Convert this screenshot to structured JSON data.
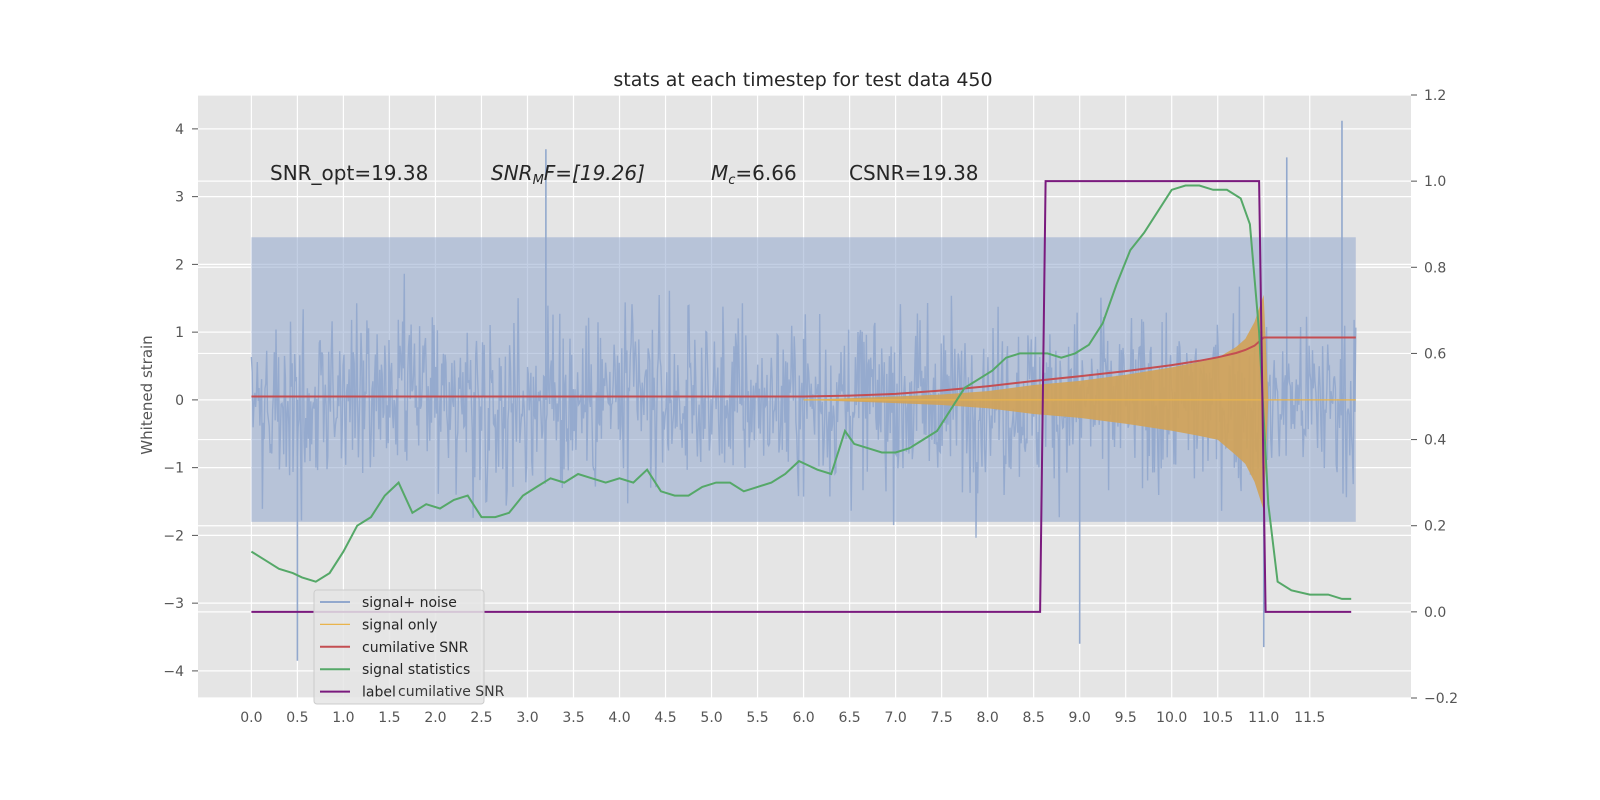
{
  "chart_data": {
    "type": "line",
    "title": "stats at each timestep for test data 450",
    "ylabel": "Whitened strain",
    "xlim": [
      -0.58,
      12.6
    ],
    "ylim": [
      -4.4,
      4.5
    ],
    "y2lim": [
      -0.2,
      1.2
    ],
    "xticks": [
      0.0,
      0.5,
      1.0,
      1.5,
      2.0,
      2.5,
      3.0,
      3.5,
      4.0,
      4.5,
      5.0,
      5.5,
      6.0,
      6.5,
      7.0,
      7.5,
      8.0,
      8.5,
      9.0,
      9.5,
      10.0,
      10.5,
      11.0,
      11.5
    ],
    "xtick_labels": [
      "0.0",
      "0.5",
      "1.0",
      "1.5",
      "2.0",
      "2.5",
      "3.0",
      "3.5",
      "4.0",
      "4.5",
      "5.0",
      "5.5",
      "6.0",
      "6.5",
      "7.0",
      "7.5",
      "8.0",
      "8.5",
      "9.0",
      "9.5",
      "10.0",
      "10.5",
      "11.0",
      "11.5"
    ],
    "yticks": [
      -4,
      -3,
      -2,
      -1,
      0,
      1,
      2,
      3,
      4
    ],
    "ytick_labels": [
      "−4",
      "−3",
      "−2",
      "−1",
      "0",
      "1",
      "2",
      "3",
      "4"
    ],
    "y2ticks": [
      -0.2,
      0.0,
      0.2,
      0.4,
      0.6,
      0.8,
      1.0,
      1.2
    ],
    "y2tick_labels": [
      "−0.2",
      "0.0",
      "0.2",
      "0.4",
      "0.6",
      "0.8",
      "1.0",
      "1.2"
    ],
    "grid": true,
    "legend_position": "lower-left",
    "annotations": [
      "SNR_opt=19.38",
      "SNR_MF=[19.26]",
      "M_c=6.66",
      "CSNR=19.38"
    ],
    "annotation_parts": {
      "snr_opt": "SNR_opt=19.38",
      "snrmf_main": "SNR",
      "snrmf_sub": "M",
      "snrmf_rest": "F=[19.26]",
      "mc_main": "M",
      "mc_sub": "c",
      "mc_rest": "=6.66",
      "csnr": "CSNR=19.38"
    },
    "series": [
      {
        "name": "signal+ noise",
        "axis": "left",
        "color": "#92a8cd",
        "style": "noise",
        "x_range": [
          0.0,
          12.0
        ],
        "typical_range": [
          -1.8,
          2.4
        ],
        "extremes": [
          [
            0.5,
            -3.85
          ],
          [
            3.2,
            3.7
          ],
          [
            6.0,
            0.9
          ],
          [
            9.0,
            -3.6
          ],
          [
            11.0,
            -3.65
          ],
          [
            11.25,
            3.58
          ],
          [
            11.85,
            4.12
          ]
        ]
      },
      {
        "name": "signal only",
        "axis": "left",
        "color": "#e9b44c",
        "style": "chirp",
        "x": [
          6.0,
          7.0,
          7.5,
          8.0,
          8.5,
          9.0,
          9.5,
          10.0,
          10.3,
          10.5,
          10.7,
          10.8,
          10.9,
          10.95,
          11.0,
          11.05,
          12.0
        ],
        "envelope": [
          0.0,
          0.05,
          0.08,
          0.13,
          0.22,
          0.28,
          0.37,
          0.48,
          0.56,
          0.62,
          0.78,
          0.9,
          1.15,
          1.35,
          1.55,
          0.0,
          0.0
        ]
      },
      {
        "name": "cumilative SNR",
        "axis": "right",
        "color": "#c44e52",
        "x": [
          0.0,
          6.0,
          6.5,
          7.0,
          7.5,
          8.0,
          8.5,
          9.0,
          9.5,
          10.0,
          10.3,
          10.5,
          10.7,
          10.8,
          10.9,
          11.0,
          12.0
        ],
        "y": [
          0.5,
          0.5,
          0.502,
          0.506,
          0.514,
          0.524,
          0.536,
          0.547,
          0.559,
          0.573,
          0.583,
          0.591,
          0.601,
          0.608,
          0.618,
          0.637,
          0.637
        ]
      },
      {
        "name": "signal statistics",
        "axis": "right",
        "color": "#55a868",
        "x": [
          0.0,
          0.15,
          0.3,
          0.45,
          0.55,
          0.7,
          0.85,
          1.0,
          1.15,
          1.3,
          1.45,
          1.6,
          1.75,
          1.9,
          2.05,
          2.2,
          2.35,
          2.5,
          2.65,
          2.8,
          2.95,
          3.1,
          3.25,
          3.4,
          3.55,
          3.7,
          3.85,
          4.0,
          4.15,
          4.3,
          4.45,
          4.6,
          4.75,
          4.9,
          5.05,
          5.2,
          5.35,
          5.5,
          5.65,
          5.8,
          5.95,
          6.05,
          6.15,
          6.3,
          6.45,
          6.55,
          6.7,
          6.85,
          7.0,
          7.15,
          7.3,
          7.45,
          7.6,
          7.75,
          7.9,
          8.05,
          8.2,
          8.35,
          8.5,
          8.65,
          8.8,
          8.95,
          9.1,
          9.25,
          9.4,
          9.55,
          9.7,
          9.85,
          10.0,
          10.15,
          10.3,
          10.45,
          10.6,
          10.75,
          10.85,
          10.95,
          11.05,
          11.15,
          11.3,
          11.5,
          11.7,
          11.85,
          11.95
        ],
        "y": [
          0.14,
          0.12,
          0.1,
          0.09,
          0.08,
          0.07,
          0.09,
          0.14,
          0.2,
          0.22,
          0.27,
          0.3,
          0.23,
          0.25,
          0.24,
          0.26,
          0.27,
          0.22,
          0.22,
          0.23,
          0.27,
          0.29,
          0.31,
          0.3,
          0.32,
          0.31,
          0.3,
          0.31,
          0.3,
          0.33,
          0.28,
          0.27,
          0.27,
          0.29,
          0.3,
          0.3,
          0.28,
          0.29,
          0.3,
          0.32,
          0.35,
          0.34,
          0.33,
          0.32,
          0.42,
          0.39,
          0.38,
          0.37,
          0.37,
          0.38,
          0.4,
          0.42,
          0.47,
          0.52,
          0.54,
          0.56,
          0.59,
          0.6,
          0.6,
          0.6,
          0.59,
          0.6,
          0.62,
          0.67,
          0.76,
          0.84,
          0.88,
          0.93,
          0.98,
          0.99,
          0.99,
          0.98,
          0.98,
          0.96,
          0.9,
          0.65,
          0.25,
          0.07,
          0.05,
          0.04,
          0.04,
          0.03,
          0.03
        ]
      },
      {
        "name": "label",
        "axis": "right",
        "color": "#7a1a7e",
        "x": [
          0.0,
          8.57,
          8.63,
          10.95,
          11.02,
          11.95
        ],
        "y": [
          0.0,
          0.0,
          1.0,
          1.0,
          0.0,
          0.0
        ]
      }
    ],
    "legend_labels": [
      "signal+ noise",
      "signal only",
      "cumilative SNR",
      "signal statistics",
      "label"
    ],
    "legend_hidden_text": "cumilative SNR"
  }
}
